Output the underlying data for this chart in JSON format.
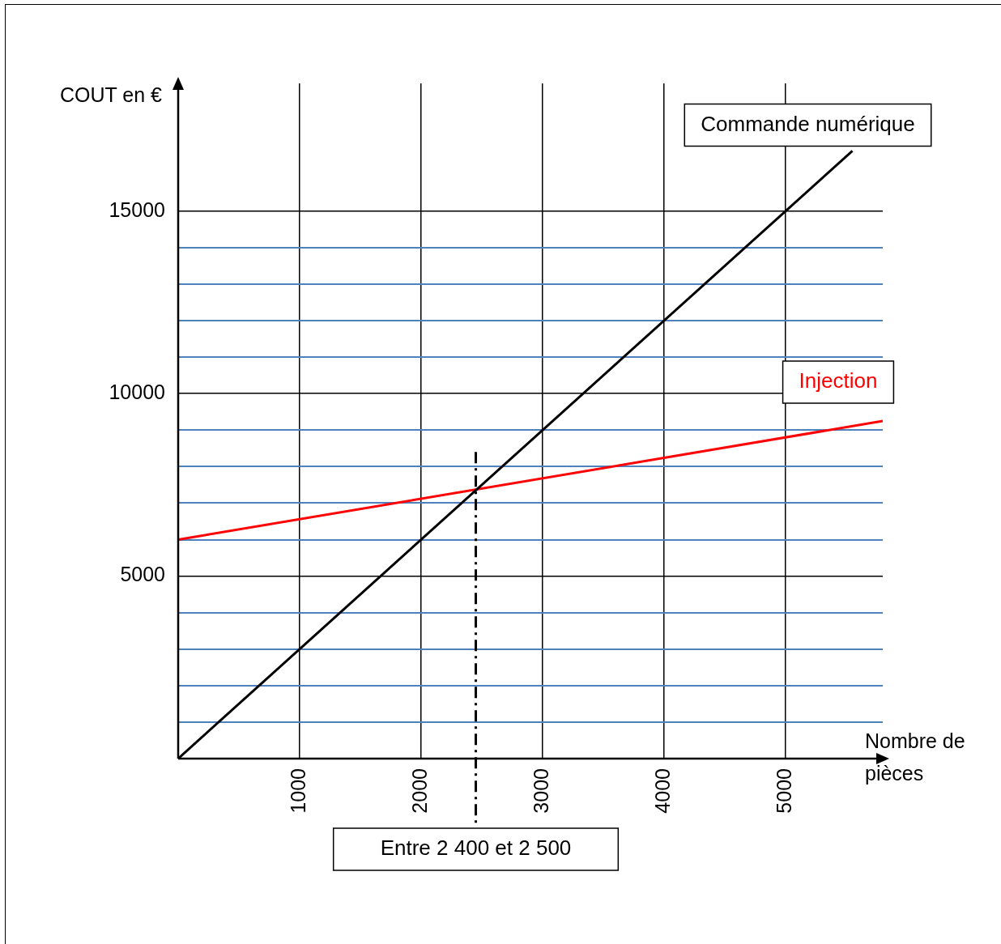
{
  "chart_data": {
    "type": "line",
    "xlabel": "Nombre de pièces",
    "ylabel": "COUT en €",
    "xlim": [
      0,
      5800
    ],
    "ylim": [
      0,
      18500
    ],
    "xticks": [
      1000,
      2000,
      3000,
      4000,
      5000
    ],
    "yticks": [
      {
        "value": 1000,
        "label": null
      },
      {
        "value": 2000,
        "label": null
      },
      {
        "value": 3000,
        "label": null
      },
      {
        "value": 4000,
        "label": null
      },
      5000,
      {
        "value": 6000,
        "label": null
      },
      {
        "value": 7000,
        "label": null
      },
      {
        "value": 8000,
        "label": null
      },
      {
        "value": 9000,
        "label": null
      },
      10000,
      {
        "value": 11000,
        "label": null
      },
      {
        "value": 12000,
        "label": null
      },
      {
        "value": 13000,
        "label": null
      },
      {
        "value": 14000,
        "label": null
      },
      15000
    ],
    "grid": true,
    "legend": false,
    "marker": "none",
    "line_style": "solid",
    "series": [
      {
        "name": "Commande numérique",
        "color": "#000000",
        "x": [
          0,
          5550
        ],
        "values": [
          0,
          16650
        ]
      },
      {
        "name": "Injection",
        "color": "#ff0000",
        "x": [
          0,
          5800
        ],
        "values": [
          6000,
          9250
        ]
      }
    ],
    "ref_lines": [
      {
        "axis": "x",
        "value": 2450,
        "label": "Entre 2 400 et 2 500",
        "line_style": "dashdot"
      }
    ]
  }
}
